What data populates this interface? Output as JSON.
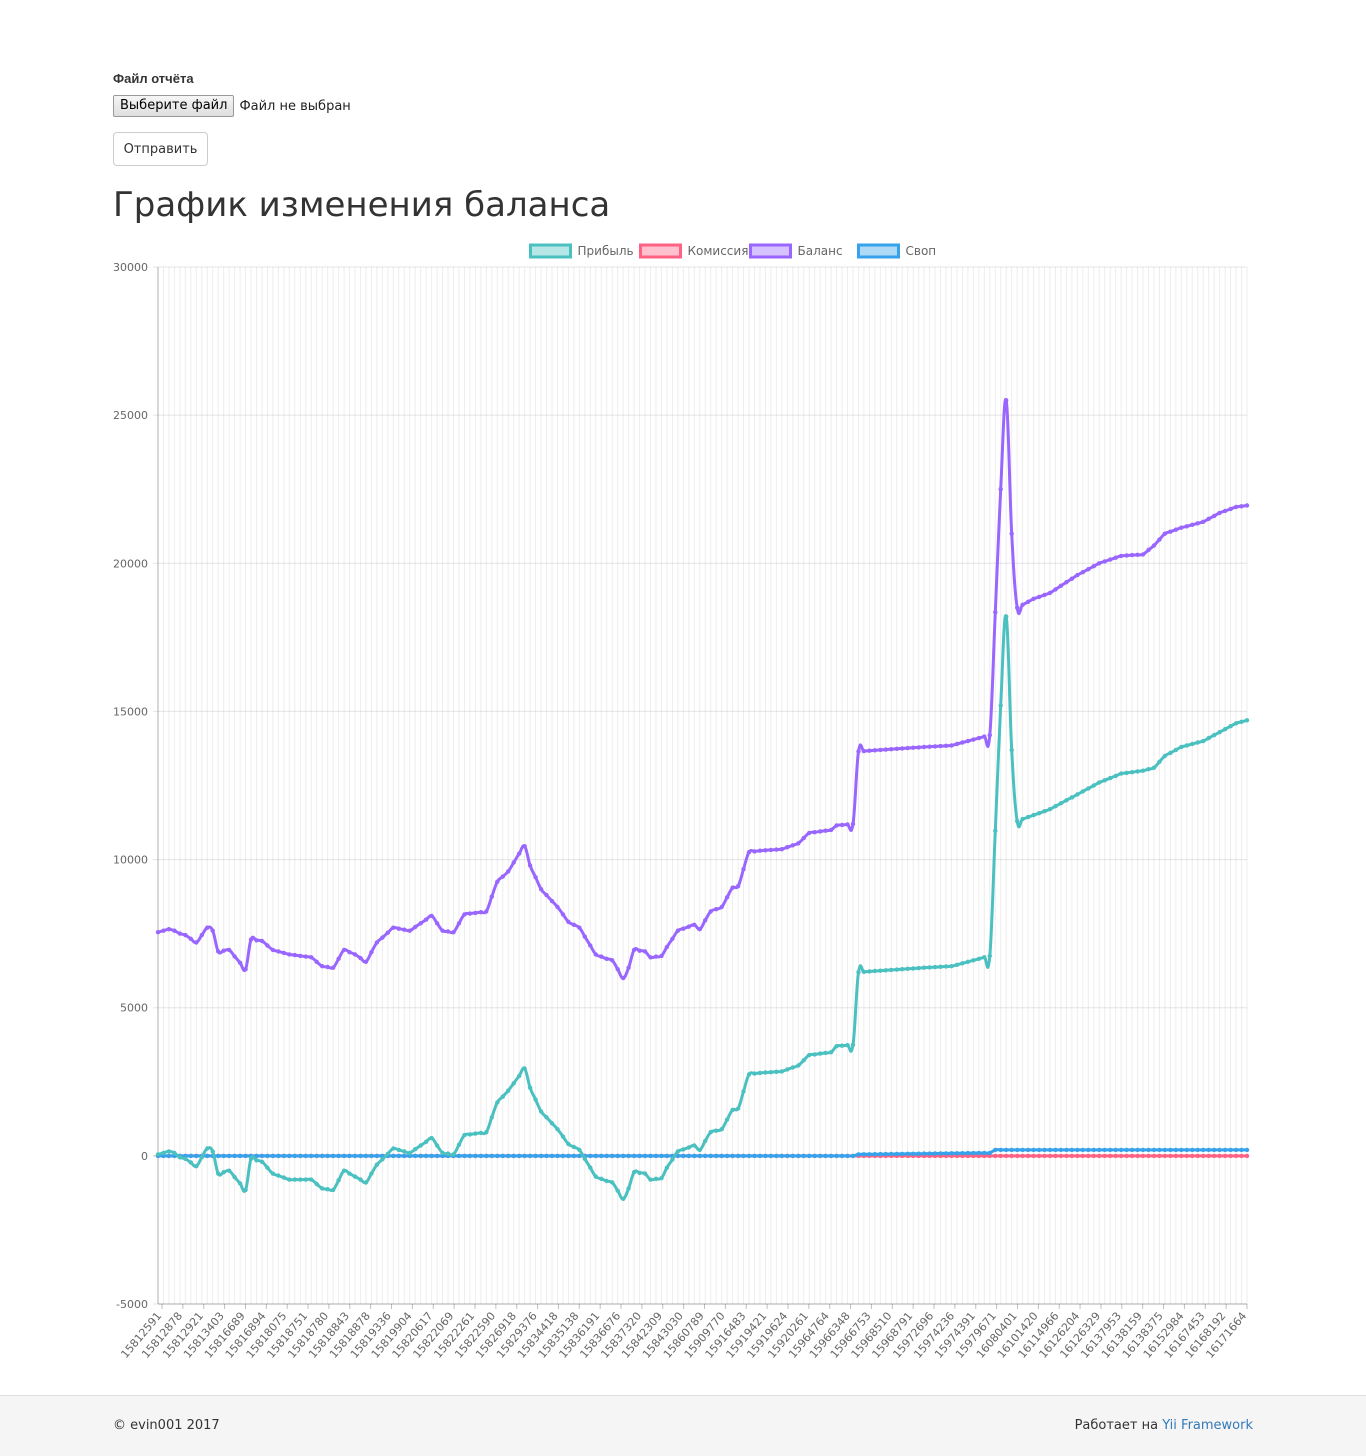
{
  "form": {
    "label": "Файл отчёта",
    "file_button": "Выберите файл",
    "file_status": "Файл не выбран",
    "submit": "Отправить"
  },
  "page_title": "График изменения баланса",
  "footer": {
    "copyright": "© evin001 2017",
    "powered_prefix": "Работает на",
    "powered_link": "Yii Framework"
  },
  "colors": {
    "profit": "#4bc0c0",
    "commission": "#ff6384",
    "balance": "#9966ff",
    "swap": "#36a2eb",
    "link": "#337ab7"
  },
  "chart_data": {
    "type": "line",
    "title": "",
    "xlabel": "",
    "ylabel": "",
    "ylim": [
      -5000,
      30000
    ],
    "y_ticks": [
      30000,
      25000,
      20000,
      15000,
      10000,
      5000,
      0,
      -5000
    ],
    "grid": true,
    "legend_position": "top",
    "x_tick_labels": [
      "15812591",
      "15812878",
      "15812921",
      "15813403",
      "15816689",
      "15816894",
      "15818075",
      "15818751",
      "15818780",
      "15818843",
      "15818878",
      "15819336",
      "15819904",
      "15820617",
      "15822069",
      "15822261",
      "15822590",
      "15826918",
      "15829376",
      "15834418",
      "15835138",
      "15836191",
      "15836676",
      "15837320",
      "15842309",
      "15843030",
      "15860789",
      "15909770",
      "15916483",
      "15919421",
      "15919624",
      "15920261",
      "15964764",
      "15966348",
      "15966753",
      "15968510",
      "15968791",
      "15972696",
      "15974236",
      "15974391",
      "15979671",
      "16080401",
      "16101420",
      "16114966",
      "16126204",
      "16126329",
      "16137953",
      "16138159",
      "16138375",
      "16152984",
      "16167453",
      "16168192",
      "16171664"
    ],
    "series": [
      {
        "name": "Прибыль",
        "anchors": [
          [
            0,
            50
          ],
          [
            2,
            150
          ],
          [
            3,
            100
          ],
          [
            4,
            -50
          ],
          [
            5,
            -100
          ],
          [
            7,
            -350
          ],
          [
            9,
            250
          ],
          [
            10,
            150
          ],
          [
            11,
            -600
          ],
          [
            13,
            -500
          ],
          [
            16,
            -1150
          ],
          [
            17,
            -100
          ],
          [
            19,
            -200
          ],
          [
            21,
            -600
          ],
          [
            24,
            -800
          ],
          [
            28,
            -800
          ],
          [
            30,
            -1100
          ],
          [
            32,
            -1150
          ],
          [
            34,
            -500
          ],
          [
            36,
            -700
          ],
          [
            38,
            -900
          ],
          [
            40,
            -300
          ],
          [
            43,
            250
          ],
          [
            46,
            100
          ],
          [
            50,
            600
          ],
          [
            52,
            100
          ],
          [
            54,
            50
          ],
          [
            56,
            700
          ],
          [
            58,
            750
          ],
          [
            60,
            800
          ],
          [
            62,
            1800
          ],
          [
            64,
            2200
          ],
          [
            66,
            2700
          ],
          [
            67,
            2950
          ],
          [
            68,
            2300
          ],
          [
            70,
            1500
          ],
          [
            73,
            900
          ],
          [
            75,
            400
          ],
          [
            77,
            200
          ],
          [
            80,
            -700
          ],
          [
            82,
            -850
          ],
          [
            83,
            -900
          ],
          [
            85,
            -1450
          ],
          [
            86,
            -1100
          ],
          [
            87,
            -550
          ],
          [
            89,
            -600
          ],
          [
            90,
            -800
          ],
          [
            92,
            -750
          ],
          [
            93,
            -400
          ],
          [
            95,
            150
          ],
          [
            98,
            350
          ],
          [
            99,
            200
          ],
          [
            101,
            800
          ],
          [
            103,
            900
          ],
          [
            105,
            1550
          ],
          [
            106,
            1600
          ],
          [
            108,
            2750
          ],
          [
            110,
            2800
          ],
          [
            114,
            2850
          ],
          [
            117,
            3050
          ],
          [
            119,
            3400
          ],
          [
            123,
            3500
          ],
          [
            124,
            3700
          ],
          [
            127,
            3750
          ],
          [
            128,
            6200
          ],
          [
            140,
            6350
          ],
          [
            145,
            6400
          ],
          [
            150,
            6650
          ],
          [
            152,
            6750
          ],
          [
            154,
            15200
          ],
          [
            155,
            18200
          ],
          [
            156,
            13700
          ],
          [
            157,
            11300
          ],
          [
            160,
            11500
          ],
          [
            163,
            11700
          ],
          [
            168,
            12200
          ],
          [
            172,
            12600
          ],
          [
            176,
            12900
          ],
          [
            180,
            13000
          ],
          [
            182,
            13100
          ],
          [
            184,
            13500
          ],
          [
            187,
            13800
          ],
          [
            191,
            14000
          ],
          [
            194,
            14300
          ],
          [
            197,
            14600
          ],
          [
            199,
            14700
          ]
        ]
      },
      {
        "name": "Комиссия",
        "anchors": [
          [
            0,
            0
          ],
          [
            199,
            0
          ]
        ]
      },
      {
        "name": "Баланс",
        "anchors": [
          [
            0,
            7550
          ],
          [
            2,
            7650
          ],
          [
            3,
            7600
          ],
          [
            4,
            7500
          ],
          [
            5,
            7450
          ],
          [
            7,
            7200
          ],
          [
            9,
            7700
          ],
          [
            10,
            7600
          ],
          [
            11,
            6900
          ],
          [
            13,
            6950
          ],
          [
            16,
            6300
          ],
          [
            17,
            7300
          ],
          [
            19,
            7250
          ],
          [
            21,
            6950
          ],
          [
            24,
            6800
          ],
          [
            28,
            6700
          ],
          [
            30,
            6400
          ],
          [
            32,
            6350
          ],
          [
            34,
            6950
          ],
          [
            36,
            6800
          ],
          [
            38,
            6550
          ],
          [
            40,
            7200
          ],
          [
            43,
            7700
          ],
          [
            46,
            7600
          ],
          [
            50,
            8100
          ],
          [
            52,
            7600
          ],
          [
            54,
            7550
          ],
          [
            56,
            8150
          ],
          [
            58,
            8200
          ],
          [
            60,
            8250
          ],
          [
            62,
            9250
          ],
          [
            64,
            9600
          ],
          [
            66,
            10200
          ],
          [
            67,
            10450
          ],
          [
            68,
            9800
          ],
          [
            70,
            9000
          ],
          [
            73,
            8400
          ],
          [
            75,
            7900
          ],
          [
            77,
            7700
          ],
          [
            80,
            6800
          ],
          [
            82,
            6650
          ],
          [
            83,
            6600
          ],
          [
            85,
            6000
          ],
          [
            86,
            6350
          ],
          [
            87,
            6950
          ],
          [
            89,
            6900
          ],
          [
            90,
            6700
          ],
          [
            92,
            6750
          ],
          [
            93,
            7050
          ],
          [
            95,
            7600
          ],
          [
            98,
            7800
          ],
          [
            99,
            7650
          ],
          [
            101,
            8250
          ],
          [
            103,
            8400
          ],
          [
            105,
            9050
          ],
          [
            106,
            9100
          ],
          [
            108,
            10250
          ],
          [
            110,
            10300
          ],
          [
            114,
            10350
          ],
          [
            117,
            10550
          ],
          [
            119,
            10900
          ],
          [
            123,
            11000
          ],
          [
            124,
            11150
          ],
          [
            127,
            11200
          ],
          [
            128,
            13650
          ],
          [
            140,
            13800
          ],
          [
            145,
            13850
          ],
          [
            150,
            14100
          ],
          [
            152,
            14200
          ],
          [
            154,
            22500
          ],
          [
            155,
            25500
          ],
          [
            156,
            21000
          ],
          [
            157,
            18500
          ],
          [
            160,
            18800
          ],
          [
            163,
            19000
          ],
          [
            168,
            19600
          ],
          [
            172,
            20000
          ],
          [
            176,
            20250
          ],
          [
            180,
            20300
          ],
          [
            182,
            20600
          ],
          [
            184,
            21000
          ],
          [
            187,
            21200
          ],
          [
            191,
            21400
          ],
          [
            194,
            21700
          ],
          [
            197,
            21900
          ],
          [
            199,
            21950
          ]
        ]
      },
      {
        "name": "Своп",
        "anchors": [
          [
            0,
            0
          ],
          [
            127,
            0
          ],
          [
            128,
            50
          ],
          [
            152,
            100
          ],
          [
            153,
            200
          ],
          [
            199,
            200
          ]
        ]
      }
    ]
  }
}
